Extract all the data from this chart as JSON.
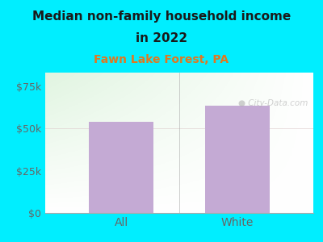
{
  "categories": [
    "All",
    "White"
  ],
  "values": [
    54000,
    63500
  ],
  "bar_color": "#c4aad4",
  "title_line1": "Median non-family household income",
  "title_line2": "in 2022",
  "subtitle": "Fawn Lake Forest, PA",
  "subtitle_color": "#e07820",
  "title_color": "#1a1a1a",
  "bg_color": "#00eeff",
  "yticks": [
    0,
    25000,
    50000,
    75000
  ],
  "ytick_labels": [
    "$0",
    "$25k",
    "$50k",
    "$75k"
  ],
  "ylim": [
    0,
    83000
  ],
  "watermark": "City-Data.com",
  "watermark_color": "#aaaaaa",
  "tick_color": "#666666",
  "bar_width": 0.72,
  "title_fontsize": 11,
  "subtitle_fontsize": 10
}
